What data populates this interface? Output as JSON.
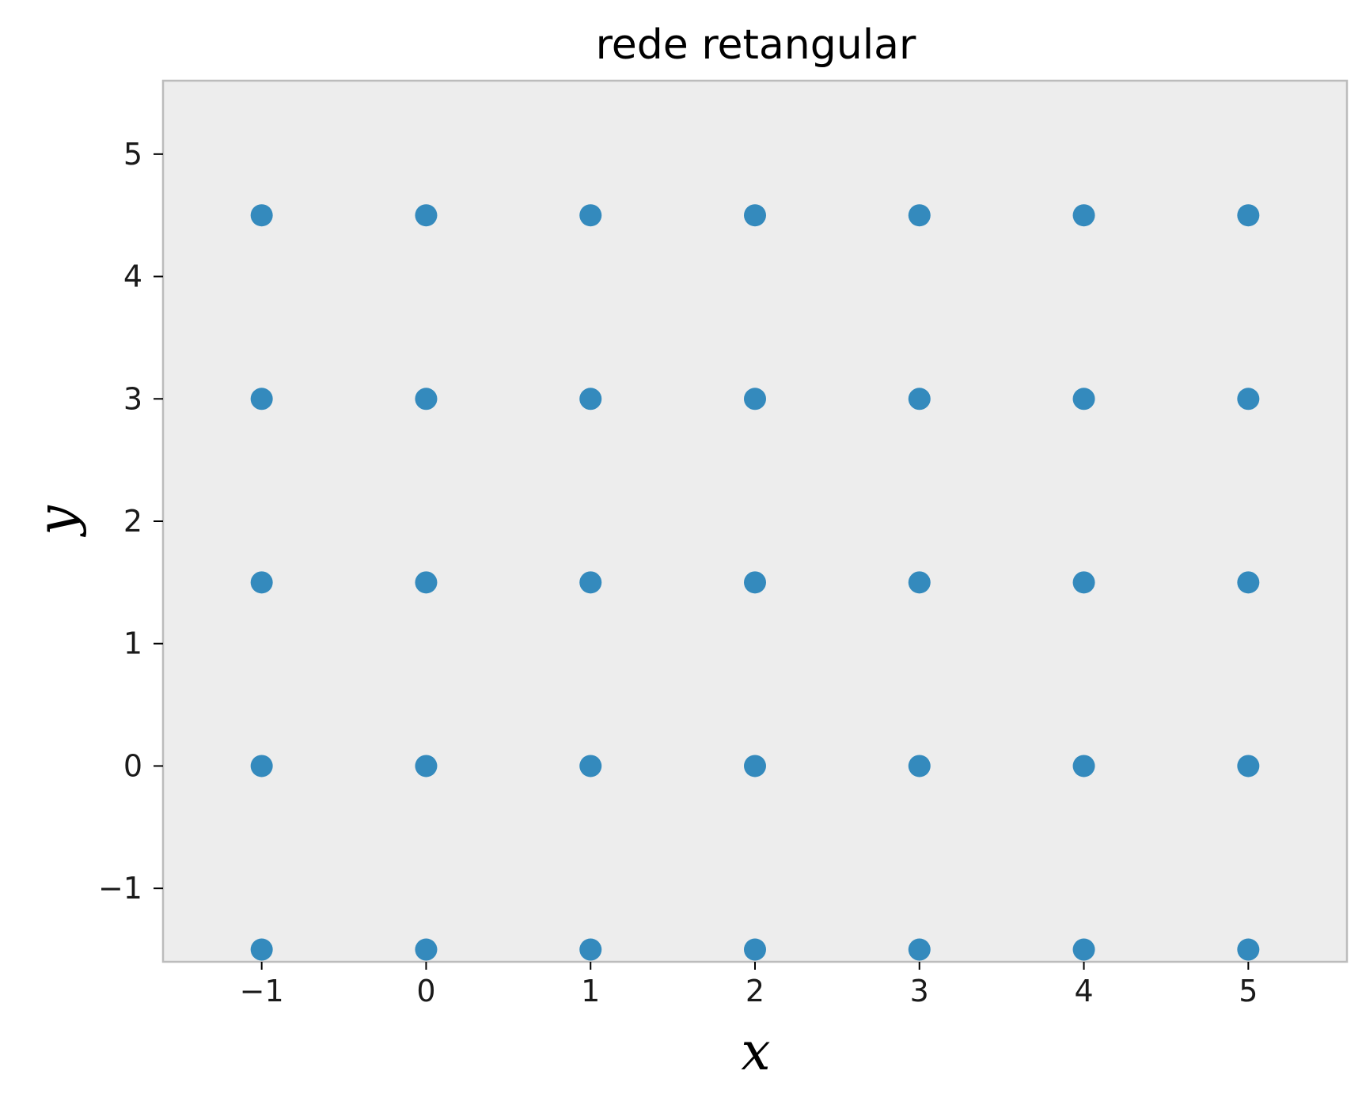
{
  "chart_data": {
    "type": "scatter",
    "title": "rede retangular",
    "xlabel": "x",
    "ylabel": "y",
    "xlim": [
      -1.6,
      5.6
    ],
    "ylim": [
      -1.6,
      5.6
    ],
    "x_ticks": [
      -1,
      0,
      1,
      2,
      3,
      4,
      5
    ],
    "x_tick_labels": [
      "−1",
      "0",
      "1",
      "2",
      "3",
      "4",
      "5"
    ],
    "y_ticks": [
      -1,
      0,
      1,
      2,
      3,
      4,
      5
    ],
    "y_tick_labels": [
      "−1",
      "0",
      "1",
      "2",
      "3",
      "4",
      "5"
    ],
    "grid": false,
    "legend": "none",
    "colors": {
      "marker": "#348abd",
      "plot_background": "#ededed",
      "frame": "#bcbcbc"
    },
    "series": [
      {
        "x": [
          -1,
          0,
          1,
          2,
          3,
          4,
          5,
          -1,
          0,
          1,
          2,
          3,
          4,
          5,
          -1,
          0,
          1,
          2,
          3,
          4,
          5,
          -1,
          0,
          1,
          2,
          3,
          4,
          5,
          -1,
          0,
          1,
          2,
          3,
          4,
          5
        ],
        "y": [
          -1.5,
          -1.5,
          -1.5,
          -1.5,
          -1.5,
          -1.5,
          -1.5,
          0,
          0,
          0,
          0,
          0,
          0,
          0,
          1.5,
          1.5,
          1.5,
          1.5,
          1.5,
          1.5,
          1.5,
          3,
          3,
          3,
          3,
          3,
          3,
          3,
          4.5,
          4.5,
          4.5,
          4.5,
          4.5,
          4.5,
          4.5
        ]
      }
    ]
  }
}
